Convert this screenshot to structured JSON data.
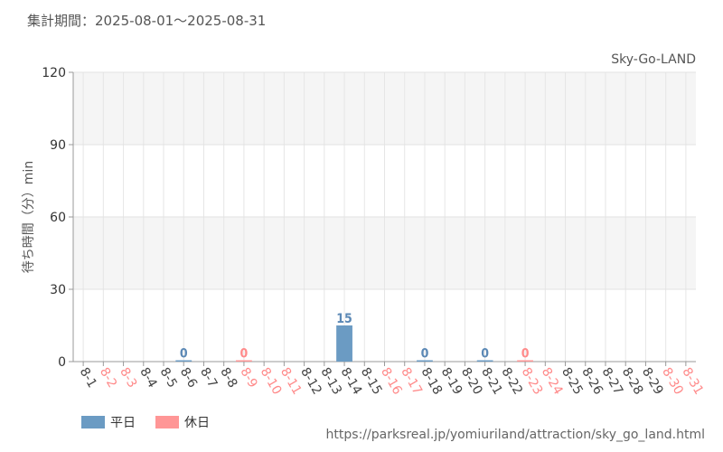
{
  "header": {
    "period_label": "集計期間：2025-08-01～2025-08-31",
    "credit": "Sky-Go-LAND"
  },
  "footer": {
    "source_url": "https://parksreal.jp/yomiuriland/attraction/sky_go_land.html"
  },
  "legend": [
    {
      "label": "平日",
      "color": "#6b9bc3"
    },
    {
      "label": "休日",
      "color": "#ff9696"
    }
  ],
  "chart_data": {
    "type": "bar",
    "ylabel": "待ち時間（分）min",
    "ylim": [
      0,
      120
    ],
    "yticks": [
      0,
      30,
      60,
      90,
      120
    ],
    "grid": true,
    "legend_position": "bottom-left",
    "categories": [
      "8-1",
      "8-2",
      "8-3",
      "8-4",
      "8-5",
      "8-6",
      "8-7",
      "8-8",
      "8-9",
      "8-10",
      "8-11",
      "8-12",
      "8-13",
      "8-14",
      "8-15",
      "8-16",
      "8-17",
      "8-18",
      "8-19",
      "8-20",
      "8-21",
      "8-22",
      "8-23",
      "8-24",
      "8-25",
      "8-26",
      "8-27",
      "8-28",
      "8-29",
      "8-30",
      "8-31"
    ],
    "day_types": [
      "weekday",
      "holiday",
      "holiday",
      "weekday",
      "weekday",
      "weekday",
      "weekday",
      "weekday",
      "holiday",
      "holiday",
      "holiday",
      "weekday",
      "weekday",
      "weekday",
      "weekday",
      "holiday",
      "holiday",
      "weekday",
      "weekday",
      "weekday",
      "weekday",
      "weekday",
      "holiday",
      "holiday",
      "weekday",
      "weekday",
      "weekday",
      "weekday",
      "weekday",
      "holiday",
      "holiday"
    ],
    "values": [
      null,
      null,
      null,
      null,
      null,
      0,
      null,
      null,
      0,
      null,
      null,
      null,
      null,
      15,
      null,
      null,
      null,
      0,
      null,
      null,
      0,
      null,
      0,
      null,
      null,
      null,
      null,
      null,
      null,
      null,
      null
    ],
    "colors": {
      "weekday": "#6b9bc3",
      "holiday": "#ff9696",
      "weekday_label": "#5b88b5",
      "holiday_label": "#ff8a8a",
      "weekday_tick": "#444444",
      "holiday_tick": "#ff8a8a"
    }
  }
}
